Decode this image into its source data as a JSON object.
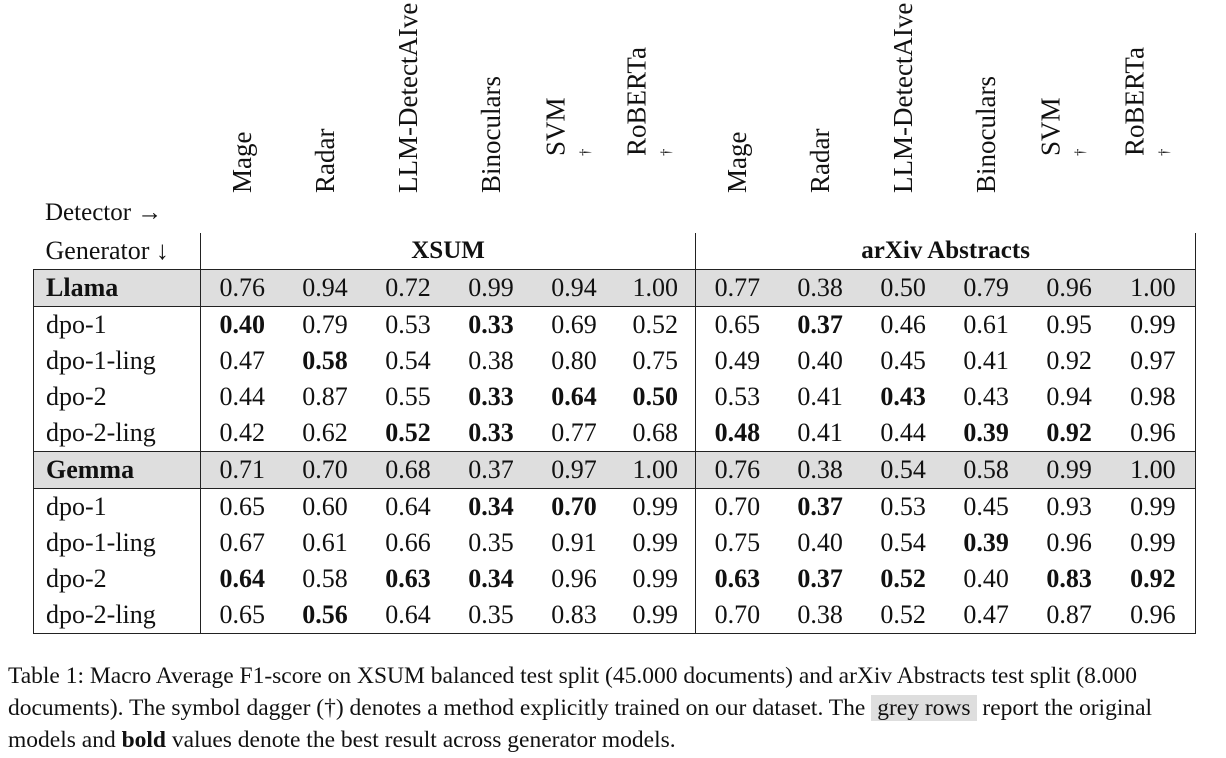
{
  "header": {
    "detector_label": "Detector →",
    "generator_label": "Generator ↓"
  },
  "detectors": [
    {
      "name": "Mage",
      "dagger": ""
    },
    {
      "name": "Radar",
      "dagger": ""
    },
    {
      "name": "LLM-DetectAIve",
      "dagger": ""
    },
    {
      "name": "Binoculars",
      "dagger": ""
    },
    {
      "name": "SVM",
      "dagger": "†"
    },
    {
      "name": "RoBERTa",
      "dagger": "†"
    },
    {
      "name": "Mage",
      "dagger": ""
    },
    {
      "name": "Radar",
      "dagger": ""
    },
    {
      "name": "LLM-DetectAIve",
      "dagger": ""
    },
    {
      "name": "Binoculars",
      "dagger": ""
    },
    {
      "name": "SVM",
      "dagger": "†"
    },
    {
      "name": "RoBERTa",
      "dagger": "†"
    }
  ],
  "datasets": [
    "XSUM",
    "arXiv Abstracts"
  ],
  "groups": [
    {
      "base": {
        "name": "Llama",
        "values": [
          "0.76",
          "0.94",
          "0.72",
          "0.99",
          "0.94",
          "1.00",
          "0.77",
          "0.38",
          "0.50",
          "0.79",
          "0.96",
          "1.00"
        ]
      },
      "rows": [
        {
          "name": "dpo-1",
          "values": [
            "0.40",
            "0.79",
            "0.53",
            "0.33",
            "0.69",
            "0.52",
            "0.65",
            "0.37",
            "0.46",
            "0.61",
            "0.95",
            "0.99"
          ],
          "bold": [
            true,
            false,
            false,
            true,
            false,
            false,
            false,
            true,
            false,
            false,
            false,
            false
          ]
        },
        {
          "name": "dpo-1-ling",
          "values": [
            "0.47",
            "0.58",
            "0.54",
            "0.38",
            "0.80",
            "0.75",
            "0.49",
            "0.40",
            "0.45",
            "0.41",
            "0.92",
            "0.97"
          ],
          "bold": [
            false,
            true,
            false,
            false,
            false,
            false,
            false,
            false,
            false,
            false,
            false,
            false
          ]
        },
        {
          "name": "dpo-2",
          "values": [
            "0.44",
            "0.87",
            "0.55",
            "0.33",
            "0.64",
            "0.50",
            "0.53",
            "0.41",
            "0.43",
            "0.43",
            "0.94",
            "0.98"
          ],
          "bold": [
            false,
            false,
            false,
            true,
            true,
            true,
            false,
            false,
            true,
            false,
            false,
            false
          ]
        },
        {
          "name": "dpo-2-ling",
          "values": [
            "0.42",
            "0.62",
            "0.52",
            "0.33",
            "0.77",
            "0.68",
            "0.48",
            "0.41",
            "0.44",
            "0.39",
            "0.92",
            "0.96"
          ],
          "bold": [
            false,
            false,
            true,
            true,
            false,
            false,
            true,
            false,
            false,
            true,
            true,
            false
          ]
        }
      ]
    },
    {
      "base": {
        "name": "Gemma",
        "values": [
          "0.71",
          "0.70",
          "0.68",
          "0.37",
          "0.97",
          "1.00",
          "0.76",
          "0.38",
          "0.54",
          "0.58",
          "0.99",
          "1.00"
        ]
      },
      "rows": [
        {
          "name": "dpo-1",
          "values": [
            "0.65",
            "0.60",
            "0.64",
            "0.34",
            "0.70",
            "0.99",
            "0.70",
            "0.37",
            "0.53",
            "0.45",
            "0.93",
            "0.99"
          ],
          "bold": [
            false,
            false,
            false,
            true,
            true,
            false,
            false,
            true,
            false,
            false,
            false,
            false
          ]
        },
        {
          "name": "dpo-1-ling",
          "values": [
            "0.67",
            "0.61",
            "0.66",
            "0.35",
            "0.91",
            "0.99",
            "0.75",
            "0.40",
            "0.54",
            "0.39",
            "0.96",
            "0.99"
          ],
          "bold": [
            false,
            false,
            false,
            false,
            false,
            false,
            false,
            false,
            false,
            true,
            false,
            false
          ]
        },
        {
          "name": "dpo-2",
          "values": [
            "0.64",
            "0.58",
            "0.63",
            "0.34",
            "0.96",
            "0.99",
            "0.63",
            "0.37",
            "0.52",
            "0.40",
            "0.83",
            "0.92"
          ],
          "bold": [
            true,
            false,
            true,
            true,
            false,
            false,
            true,
            true,
            true,
            false,
            true,
            true
          ]
        },
        {
          "name": "dpo-2-ling",
          "values": [
            "0.65",
            "0.56",
            "0.64",
            "0.35",
            "0.83",
            "0.99",
            "0.70",
            "0.38",
            "0.52",
            "0.47",
            "0.87",
            "0.96"
          ],
          "bold": [
            false,
            true,
            false,
            false,
            false,
            false,
            false,
            false,
            false,
            false,
            false,
            false
          ]
        }
      ]
    }
  ],
  "caption": {
    "label": "Table 1:",
    "part1": " Macro Average F1-score on XSUM balanced test split (45.000 documents) and arXiv Abstracts test split (8.000 documents). The symbol dagger (†) denotes a method explicitly trained on our dataset. The ",
    "grey_rows": "grey rows",
    "part2": " report the original models and ",
    "bold_word": "bold",
    "part3": " values denote the best result across generator models."
  }
}
